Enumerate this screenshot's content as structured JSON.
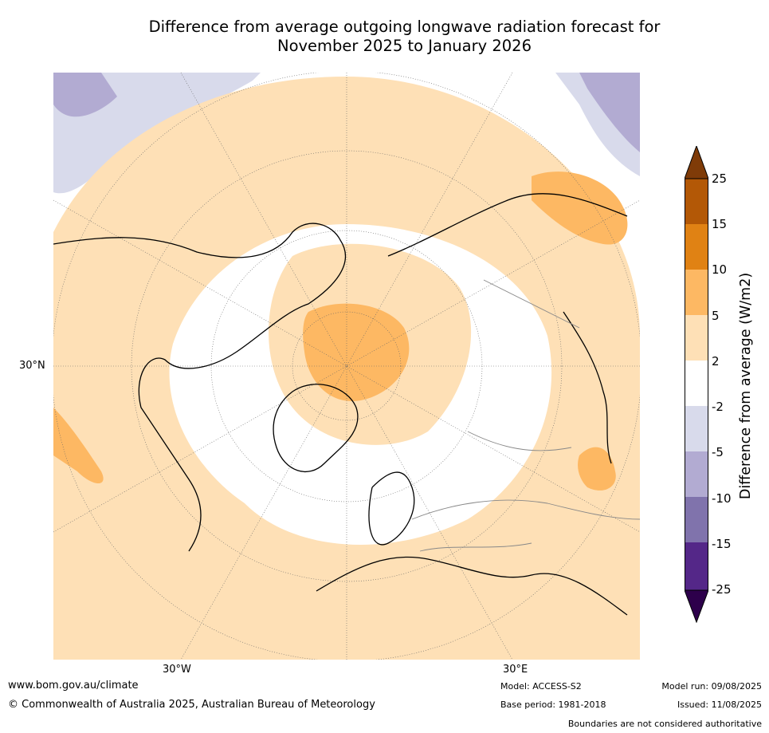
{
  "title": {
    "line1": "Difference from average outgoing longwave radiation forecast for",
    "line2": "November 2025 to January 2026"
  },
  "map": {
    "projection": "north-polar-stereographic",
    "graticule_labels": {
      "lat_30n": "30°N",
      "lon_30w": "30°W",
      "lon_30e": "30°E"
    },
    "grid": true
  },
  "colorbar": {
    "title": "Difference from average (W/m2)",
    "ticks": [
      "25",
      "15",
      "10",
      "5",
      "2",
      "-2",
      "-5",
      "-10",
      "-15",
      "-25"
    ],
    "colors": {
      "over": "#7f3b08",
      "gt15": "#b35806",
      "10_15": "#e08214",
      "5_10": "#fdb863",
      "2_5": "#fee0b6",
      "neutral": "#ffffff",
      "m2_m5": "#d8daeb",
      "m5_m10": "#b2abd2",
      "m10_m15": "#8073ac",
      "m15_m25": "#542788",
      "under": "#2d004b"
    }
  },
  "footer": {
    "website": "www.bom.gov.au/climate",
    "copyright": "© Commonwealth of Australia 2025, Australian Bureau of Meteorology",
    "model": "Model: ACCESS-S2",
    "base_period": "Base period: 1981-2018",
    "model_run": "Model run: 09/08/2025",
    "issued": "Issued: 11/08/2025",
    "boundaries_note": "Boundaries are not considered authoritative"
  }
}
